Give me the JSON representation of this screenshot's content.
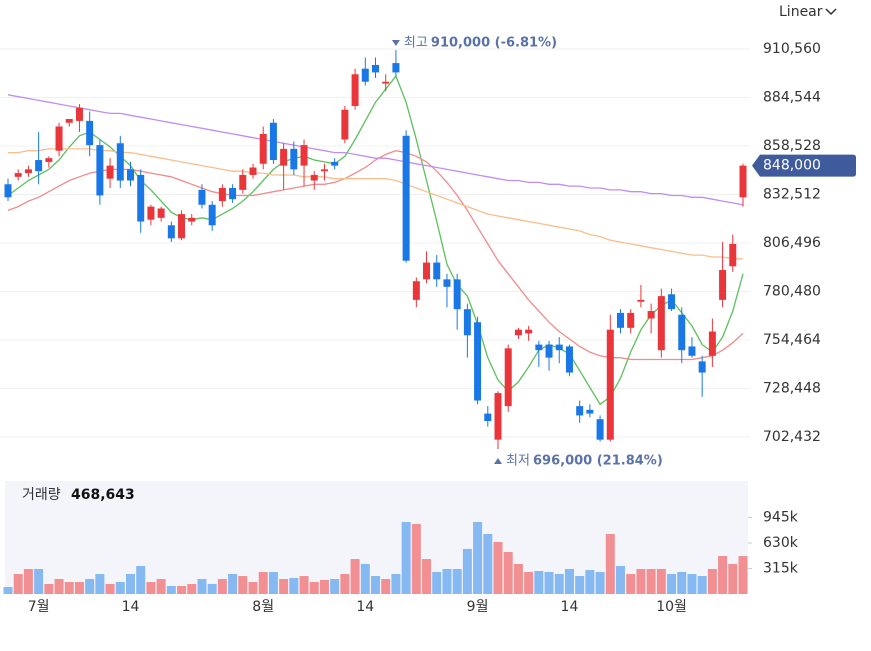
{
  "chart_data": {
    "type": "candlestick",
    "scale_menu": "Linear",
    "categories": [
      null,
      null,
      null,
      "7월",
      null,
      null,
      null,
      null,
      null,
      null,
      null,
      null,
      "14",
      null,
      null,
      null,
      null,
      null,
      null,
      null,
      null,
      null,
      null,
      null,
      null,
      "8월",
      null,
      null,
      null,
      null,
      null,
      null,
      null,
      null,
      null,
      "14",
      null,
      null,
      null,
      null,
      null,
      null,
      null,
      null,
      null,
      null,
      "9월",
      null,
      null,
      null,
      null,
      null,
      null,
      null,
      null,
      "14",
      null,
      null,
      null,
      null,
      null,
      null,
      null,
      null,
      null,
      "10월",
      null,
      null,
      null,
      null,
      null,
      null,
      null
    ],
    "open": [
      838000,
      842000,
      844000,
      851000,
      850000,
      856000,
      871000,
      872000,
      872000,
      859000,
      841000,
      860000,
      846000,
      843000,
      819000,
      820000,
      816000,
      809000,
      818000,
      835000,
      827000,
      829000,
      836000,
      835000,
      843000,
      849000,
      871000,
      848000,
      857000,
      848000,
      840000,
      845000,
      850000,
      862000,
      880000,
      900000,
      902000,
      892000,
      903000,
      864000,
      776000,
      787000,
      796000,
      787000,
      787000,
      771000,
      764000,
      715000,
      701000,
      719000,
      757000,
      758000,
      752000,
      752000,
      752000,
      751000,
      719000,
      717000,
      712000,
      701000,
      769000,
      761000,
      775000,
      766000,
      749000,
      779000,
      768000,
      751000,
      743000,
      746000,
      776000,
      794000,
      831000
    ],
    "high": [
      841000,
      846000,
      848000,
      866000,
      853000,
      871000,
      873000,
      881000,
      877000,
      862000,
      852000,
      864000,
      850000,
      846000,
      827000,
      826000,
      818000,
      824000,
      822000,
      838000,
      829000,
      838000,
      838000,
      846000,
      849000,
      869000,
      873000,
      860000,
      861000,
      862000,
      845000,
      849000,
      852000,
      880000,
      900000,
      906000,
      906000,
      897000,
      910000,
      867000,
      788000,
      802000,
      800000,
      790000,
      790000,
      774000,
      767000,
      719000,
      727000,
      752000,
      761000,
      762000,
      754000,
      754000,
      756000,
      752000,
      722000,
      720000,
      714000,
      768000,
      771000,
      771000,
      784000,
      774000,
      782000,
      782000,
      772000,
      756000,
      746000,
      766000,
      807000,
      811000,
      849000
    ],
    "low": [
      829000,
      840000,
      842000,
      838000,
      847000,
      853000,
      869000,
      866000,
      853000,
      827000,
      836000,
      836000,
      837000,
      812000,
      816000,
      818000,
      807000,
      808000,
      816000,
      825000,
      813000,
      826000,
      828000,
      833000,
      841000,
      846000,
      849000,
      835000,
      843000,
      837000,
      835000,
      840000,
      846000,
      860000,
      878000,
      891000,
      895000,
      888000,
      896000,
      796000,
      772000,
      785000,
      783000,
      772000,
      760000,
      745000,
      720000,
      708000,
      696000,
      716000,
      755000,
      754000,
      740000,
      738000,
      742000,
      735000,
      710000,
      713000,
      700000,
      700000,
      758000,
      758000,
      772000,
      758000,
      745000,
      770000,
      742000,
      745000,
      724000,
      740000,
      772000,
      791000,
      826000
    ],
    "close": [
      831000,
      844000,
      846000,
      845000,
      852000,
      869000,
      873000,
      879000,
      859000,
      832000,
      848000,
      840000,
      840000,
      818000,
      826000,
      825000,
      809000,
      822000,
      820000,
      827000,
      816000,
      836000,
      830000,
      843000,
      847000,
      865000,
      851000,
      857000,
      846000,
      859000,
      843000,
      846000,
      848000,
      878000,
      897000,
      893000,
      898000,
      893000,
      898000,
      797000,
      786000,
      796000,
      787000,
      783000,
      771000,
      757000,
      722000,
      711000,
      726000,
      750000,
      760000,
      760000,
      749000,
      745000,
      749000,
      737000,
      714000,
      715000,
      701000,
      760000,
      761000,
      769000,
      776000,
      770000,
      778000,
      771000,
      749000,
      746000,
      737000,
      759000,
      792000,
      806000,
      848000
    ],
    "up_color": "#e8363b",
    "down_color": "#1a78e6",
    "ylim": [
      690100,
      926116
    ],
    "yticks": [
      {
        "value": 702432,
        "label": "702,432"
      },
      {
        "value": 728448,
        "label": "728,448"
      },
      {
        "value": 754464,
        "label": "754,464"
      },
      {
        "value": 780480,
        "label": "780,480"
      },
      {
        "value": 806496,
        "label": "806,496"
      },
      {
        "value": 832512,
        "label": "832,512"
      },
      {
        "value": 858528,
        "label": "858,528"
      },
      {
        "value": 884544,
        "label": "884,544"
      },
      {
        "value": 910560,
        "label": "910,560"
      }
    ],
    "grid": true,
    "moving_averages": [
      {
        "color": "#5cc05c",
        "values": [
          832000,
          836000,
          840000,
          843000,
          846000,
          851000,
          858000,
          864000,
          866000,
          862000,
          858000,
          853000,
          848000,
          840000,
          835000,
          829000,
          823000,
          820000,
          819000,
          820000,
          819000,
          822000,
          825000,
          829000,
          834000,
          840000,
          846000,
          850000,
          852000,
          853000,
          851000,
          850000,
          849000,
          853000,
          862000,
          872000,
          882000,
          889000,
          896000,
          882000,
          862000,
          840000,
          818000,
          795000,
          784000,
          778000,
          763000,
          745000,
          733000,
          727000,
          732000,
          740000,
          749000,
          752000,
          750000,
          747000,
          738000,
          729000,
          720000,
          724000,
          734000,
          748000,
          760000,
          768000,
          773000,
          776000,
          769000,
          762000,
          752000,
          748000,
          756000,
          770000,
          790000
        ]
      },
      {
        "color": "#f28b8b",
        "values": [
          824000,
          826000,
          829000,
          831000,
          834000,
          837000,
          840000,
          842000,
          844000,
          845000,
          846000,
          846000,
          846000,
          845000,
          844000,
          843000,
          842000,
          840000,
          838000,
          836000,
          834000,
          833000,
          832000,
          832000,
          832000,
          833000,
          834000,
          835000,
          836000,
          837000,
          838000,
          838000,
          839000,
          841000,
          844000,
          847000,
          851000,
          854000,
          856000,
          855000,
          853000,
          850000,
          845000,
          839000,
          832000,
          824000,
          815000,
          806000,
          797000,
          790000,
          783000,
          776000,
          770000,
          764000,
          759000,
          755000,
          751000,
          748000,
          746000,
          745000,
          745000,
          744000,
          744000,
          744000,
          744000,
          744000,
          744000,
          744000,
          745000,
          746000,
          749000,
          753000,
          758000
        ]
      },
      {
        "color": "#f7bf8f",
        "values": [
          855000,
          855000,
          856000,
          856000,
          857000,
          857000,
          857000,
          857000,
          857000,
          856000,
          856000,
          855000,
          855000,
          854000,
          853000,
          852000,
          851000,
          850000,
          849000,
          848000,
          847000,
          846000,
          845000,
          845000,
          844000,
          844000,
          843000,
          843000,
          843000,
          842000,
          842000,
          842000,
          841000,
          841000,
          841000,
          841000,
          841000,
          841000,
          840000,
          838000,
          836000,
          834000,
          832000,
          830000,
          828000,
          826000,
          824000,
          822000,
          821000,
          820000,
          819000,
          818000,
          817000,
          816000,
          815000,
          814000,
          813000,
          811000,
          810000,
          808000,
          807000,
          806000,
          805000,
          804000,
          803000,
          802000,
          801000,
          800000,
          800000,
          799000,
          799000,
          798000,
          798000
        ]
      },
      {
        "color": "#c08ef0",
        "values": [
          886000,
          885000,
          884000,
          883000,
          882000,
          881000,
          880000,
          879000,
          878000,
          877000,
          876000,
          876000,
          875000,
          874000,
          873000,
          872000,
          871000,
          870000,
          869000,
          868000,
          867000,
          866000,
          865000,
          864000,
          863000,
          862000,
          861000,
          860000,
          859000,
          858000,
          857000,
          856000,
          855000,
          855000,
          854000,
          853000,
          852000,
          852000,
          851000,
          850000,
          849000,
          848000,
          847000,
          846000,
          845000,
          844000,
          843000,
          842000,
          841000,
          840000,
          840000,
          839000,
          839000,
          838000,
          838000,
          837000,
          837000,
          836000,
          836000,
          835000,
          835000,
          834000,
          834000,
          833000,
          833000,
          832000,
          832000,
          831000,
          831000,
          830000,
          829000,
          828000,
          827000
        ]
      }
    ],
    "high_marker": {
      "label": "최고",
      "value": 910000,
      "value_label": "910,000 (-6.81%)",
      "color": "#5a72a8"
    },
    "low_marker": {
      "label": "최저",
      "value": 696000,
      "value_label": "696,000 (21.84%)",
      "color": "#5a72a8"
    },
    "current_price": {
      "value": 848000,
      "label": "848,000",
      "color": "#3f5b9c"
    },
    "volume": {
      "title": "거래량",
      "latest": {
        "value": 468643,
        "label": "468,643"
      },
      "values": [
        86000,
        247000,
        309000,
        309000,
        124000,
        185000,
        148000,
        148000,
        185000,
        247000,
        124000,
        148000,
        247000,
        346000,
        148000,
        185000,
        99000,
        99000,
        124000,
        185000,
        124000,
        185000,
        247000,
        222000,
        148000,
        272000,
        272000,
        185000,
        198000,
        222000,
        148000,
        173000,
        185000,
        247000,
        432000,
        371000,
        222000,
        185000,
        247000,
        889000,
        865000,
        432000,
        272000,
        309000,
        309000,
        556000,
        889000,
        741000,
        642000,
        519000,
        371000,
        272000,
        284000,
        272000,
        247000,
        309000,
        222000,
        296000,
        272000,
        741000,
        346000,
        247000,
        309000,
        309000,
        309000,
        247000,
        272000,
        247000,
        222000,
        309000,
        469000,
        371000,
        468643
      ],
      "up_color": "#f28f92",
      "down_color": "#86b8f2",
      "ylim": [
        0,
        1371000
      ],
      "yticks": [
        {
          "value": 315000,
          "label": "315k"
        },
        {
          "value": 630000,
          "label": "630k"
        },
        {
          "value": 945000,
          "label": "945k"
        }
      ]
    }
  }
}
